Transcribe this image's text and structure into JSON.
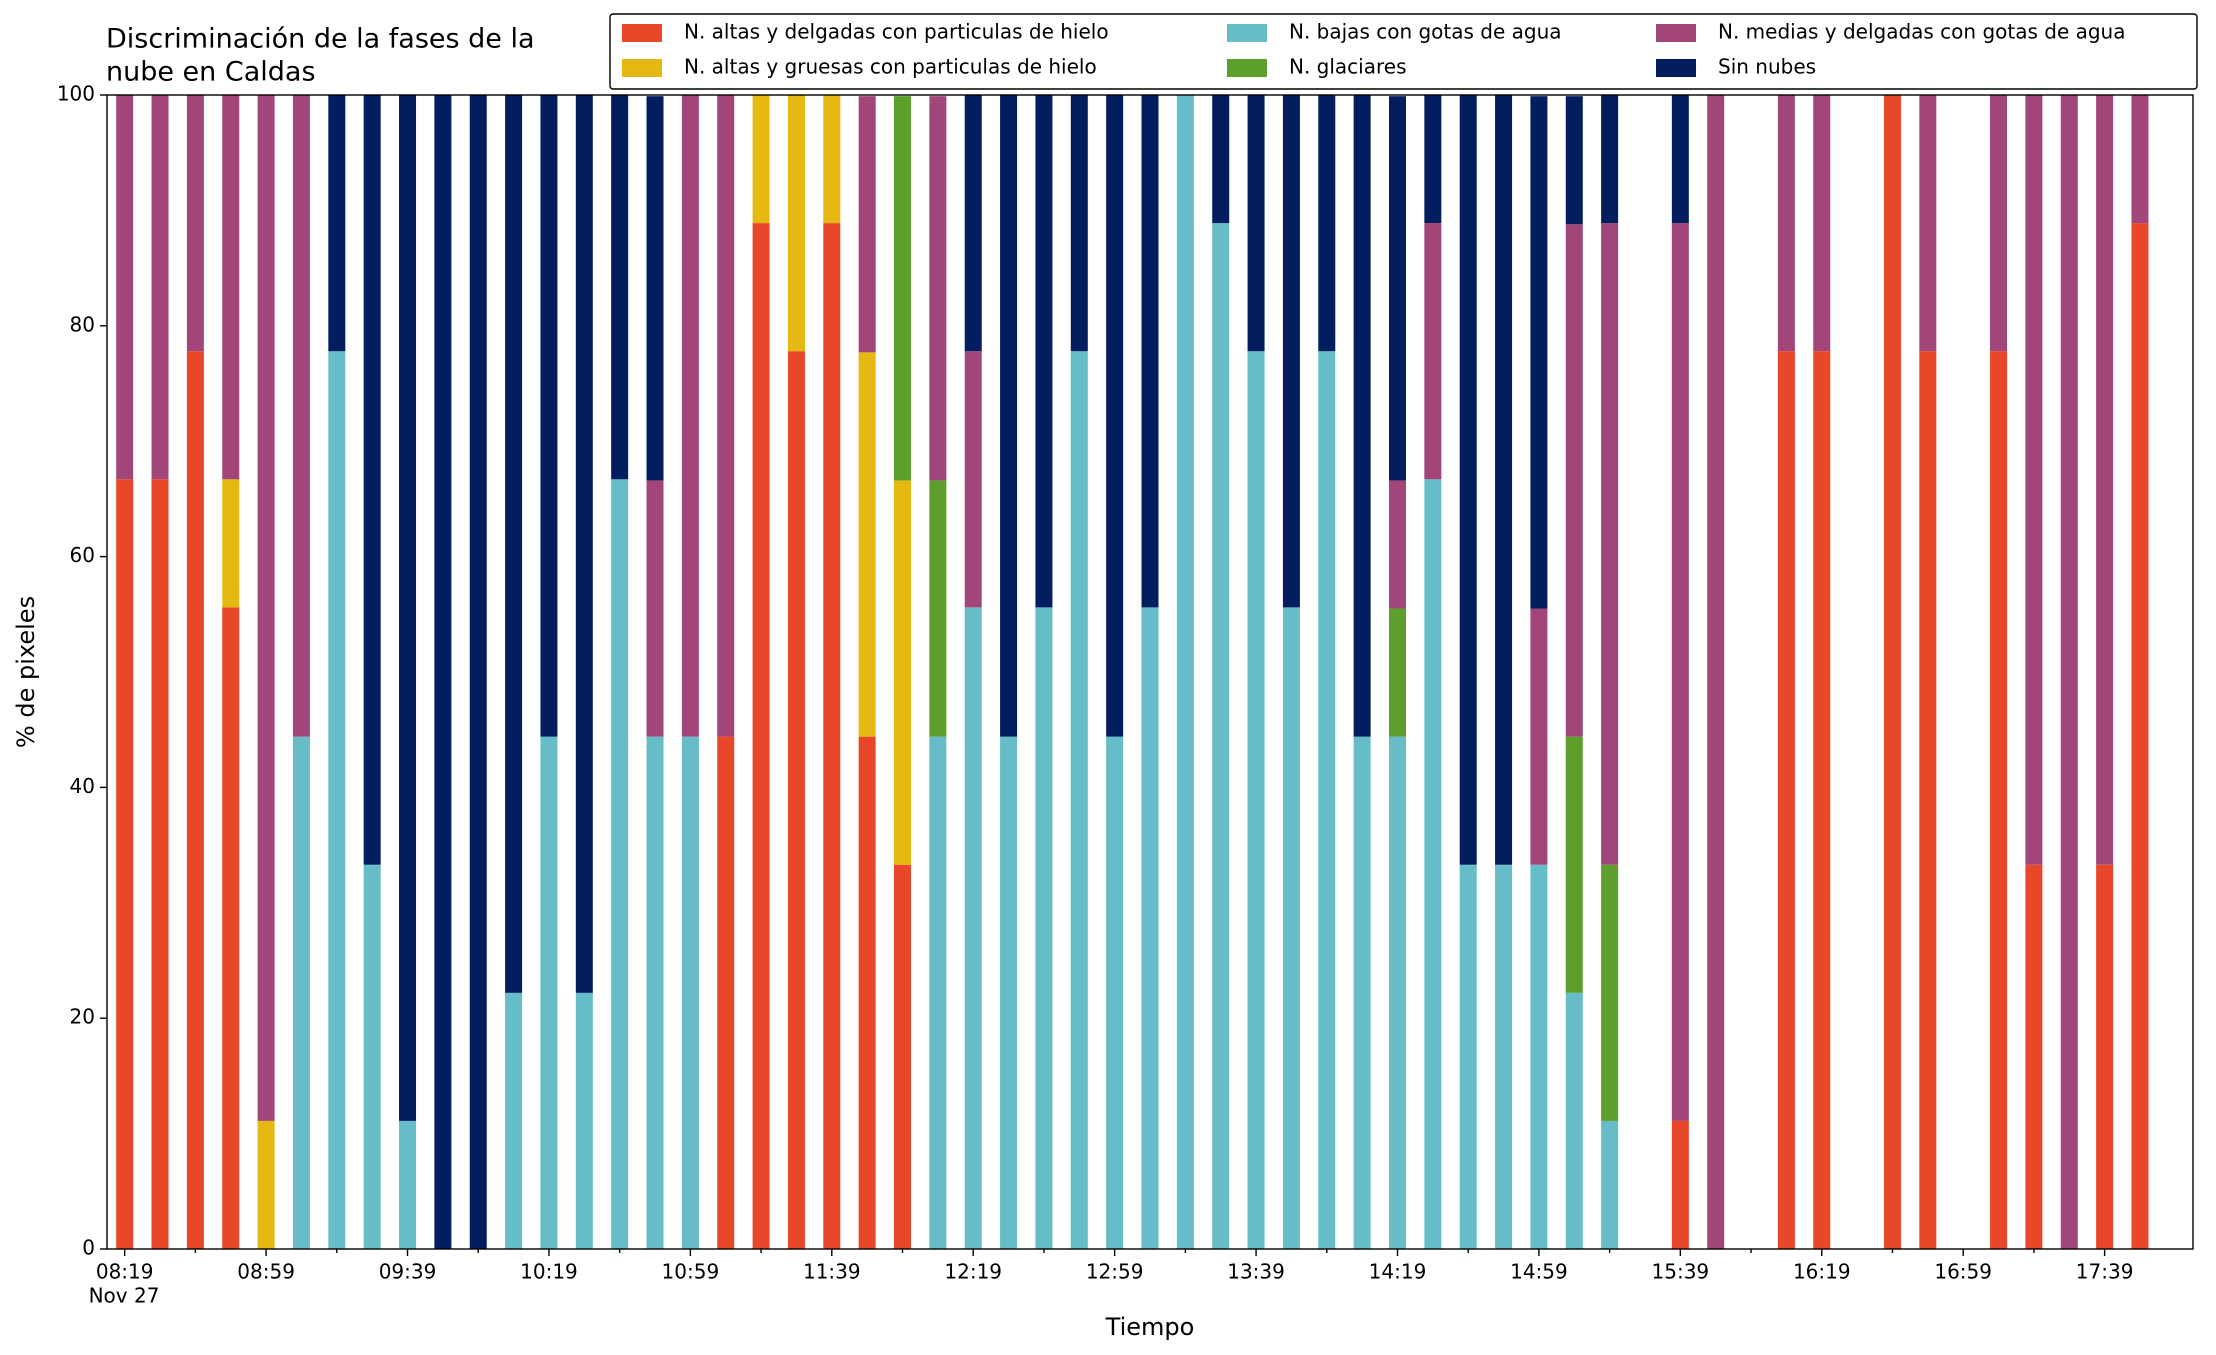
{
  "chart_data": {
    "type": "stacked_bar",
    "title": [
      "Discriminación de la fases de la",
      "nube en Caldas"
    ],
    "xlabel": "Tiempo",
    "ylabel": "% de pixeles",
    "date_label": "Nov 27",
    "categories": [
      "08:19",
      null,
      null,
      null,
      "08:59",
      null,
      null,
      null,
      "09:39",
      null,
      null,
      null,
      "10:19",
      null,
      null,
      null,
      "10:59",
      null,
      null,
      null,
      "11:39",
      null,
      null,
      null,
      "12:19",
      null,
      null,
      null,
      "12:59",
      null,
      null,
      null,
      "13:39",
      null,
      null,
      null,
      "14:19",
      null,
      null,
      null,
      "14:59",
      null,
      null,
      null,
      "15:39",
      null,
      null,
      null,
      "16:19",
      null,
      null,
      null,
      "16:59",
      null,
      null,
      null,
      "17:39",
      null
    ],
    "ylim": [
      0,
      100
    ],
    "yticks": [
      0,
      20,
      40,
      60,
      80,
      100
    ],
    "legend": "upper right",
    "series": [
      {
        "name": "N. altas y delgadas con particulas de hielo",
        "color": "#e9472a",
        "values": [
          66.7,
          66.7,
          77.8,
          55.6,
          0,
          0,
          0,
          0,
          0,
          0,
          0,
          0,
          0,
          0,
          0,
          0,
          0,
          44.4,
          88.9,
          77.8,
          88.9,
          44.4,
          33.3,
          0,
          0,
          0,
          0,
          0,
          0,
          0,
          0,
          0,
          0,
          0,
          0,
          0,
          0,
          0,
          0,
          0,
          0,
          0,
          0,
          0,
          11.1,
          0,
          0,
          77.8,
          77.8,
          0,
          100,
          77.8,
          0,
          77.8,
          33.3,
          0,
          33.3,
          88.9
        ]
      },
      {
        "name": "N. altas y gruesas con particulas de hielo",
        "color": "#e5b912",
        "values": [
          0,
          0,
          0,
          11.1,
          11.1,
          0,
          0,
          0,
          0,
          0,
          0,
          0,
          0,
          0,
          0,
          0,
          0,
          0,
          11.1,
          22.2,
          11.1,
          33.3,
          33.3,
          0,
          0,
          0,
          0,
          0,
          0,
          0,
          0,
          0,
          0,
          0,
          0,
          0,
          0,
          0,
          0,
          0,
          0,
          0,
          0,
          0,
          0,
          0,
          0,
          0,
          0,
          0,
          0,
          0,
          0,
          0,
          0,
          0,
          0,
          0
        ]
      },
      {
        "name": "N. bajas con gotas de agua",
        "color": "#66bdc8",
        "values": [
          0,
          0,
          0,
          0,
          0,
          44.4,
          77.8,
          33.3,
          11.1,
          0,
          0,
          22.2,
          44.4,
          22.2,
          66.7,
          44.4,
          44.4,
          0,
          0,
          0,
          0,
          0,
          0,
          44.4,
          55.6,
          44.4,
          55.6,
          77.8,
          44.4,
          55.6,
          100,
          88.9,
          77.8,
          55.6,
          77.8,
          44.4,
          44.4,
          66.7,
          33.3,
          33.3,
          33.3,
          22.2,
          11.1,
          0,
          0,
          0,
          0,
          0,
          0,
          0,
          0,
          0,
          0,
          0,
          0,
          0,
          0,
          0
        ]
      },
      {
        "name": "N. glaciares",
        "color": "#5c9f2a",
        "values": [
          0,
          0,
          0,
          0,
          0,
          0,
          0,
          0,
          0,
          0,
          0,
          0,
          0,
          0,
          0,
          0,
          0,
          0,
          0,
          0,
          0,
          0,
          33.3,
          22.2,
          0,
          0,
          0,
          0,
          0,
          0,
          0,
          0,
          0,
          0,
          0,
          0,
          11.1,
          0,
          0,
          0,
          0,
          22.2,
          22.2,
          0,
          0,
          0,
          0,
          0,
          0,
          0,
          0,
          0,
          0,
          0,
          0,
          0,
          0,
          0
        ]
      },
      {
        "name": "N. medias y delgadas con gotas de agua",
        "color": "#a2467a",
        "values": [
          33.3,
          33.3,
          22.2,
          33.3,
          88.9,
          55.6,
          0,
          0,
          0,
          0,
          0,
          0,
          0,
          0,
          0,
          22.2,
          55.6,
          55.6,
          0,
          0,
          0,
          22.2,
          0,
          33.3,
          22.2,
          0,
          0,
          0,
          0,
          0,
          0,
          0,
          0,
          0,
          0,
          0,
          11.1,
          22.2,
          0,
          0,
          22.2,
          44.4,
          55.6,
          0,
          77.8,
          100,
          0,
          22.2,
          22.2,
          0,
          0,
          22.2,
          0,
          22.2,
          66.7,
          100,
          66.7,
          11.1
        ]
      },
      {
        "name": "Sin nubes",
        "color": "#021e5f",
        "values": [
          0,
          0,
          0,
          0,
          0,
          0,
          22.2,
          66.7,
          88.9,
          100,
          100,
          77.8,
          55.6,
          77.8,
          33.3,
          33.3,
          0,
          0,
          0,
          0,
          0,
          0,
          0,
          0,
          22.2,
          55.6,
          44.4,
          22.2,
          55.6,
          44.4,
          0,
          11.1,
          22.2,
          44.4,
          22.2,
          55.6,
          33.3,
          11.1,
          66.7,
          66.7,
          44.4,
          11.1,
          11.1,
          0,
          11.1,
          0,
          0,
          0,
          0,
          0,
          0,
          0,
          0,
          0,
          0,
          0,
          0,
          0
        ]
      }
    ]
  }
}
